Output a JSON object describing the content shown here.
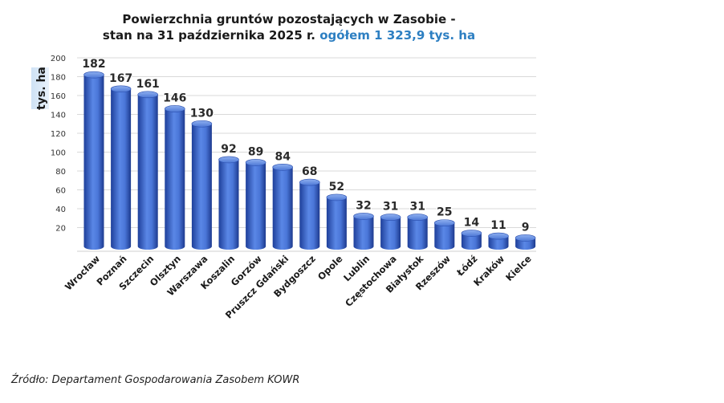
{
  "chart_data": {
    "type": "bar",
    "title_line1": "Powierzchnia gruntów pozostających w Zasobie -",
    "title_line2": "stan na 31 października 2025 r.",
    "title_accent": "ogółem 1 323,9 tys. ha",
    "ylabel": "tys. ha",
    "xlabel": "",
    "ylim": [
      0,
      200
    ],
    "yticks": [
      20,
      40,
      60,
      80,
      100,
      120,
      140,
      160,
      180,
      200
    ],
    "categories": [
      "Wrocław",
      "Poznań",
      "Szczecin",
      "Olsztyn",
      "Warszawa",
      "Koszalin",
      "Gorzów",
      "Pruszcz Gdański",
      "Bydgoszcz",
      "Opole",
      "Lublin",
      "Częstochowa",
      "Białystok",
      "Rzeszów",
      "Łódź",
      "Kraków",
      "Kielce"
    ],
    "values": [
      182,
      167,
      161,
      146,
      130,
      92,
      89,
      84,
      68,
      52,
      32,
      31,
      31,
      25,
      14,
      11,
      9
    ],
    "grid": true,
    "legend": "none",
    "bar_color": "#3f6fd1"
  },
  "source": "Źródło: Departament Gospodarowania Zasobem KOWR"
}
